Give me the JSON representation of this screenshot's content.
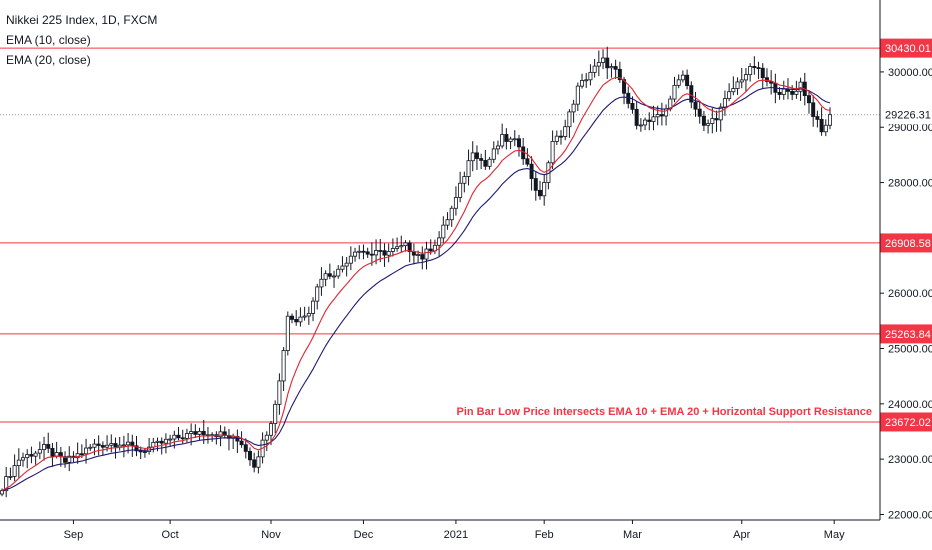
{
  "chart_data": {
    "type": "candlestick",
    "title": "Nikkei 225 Index, 1D, FXCM",
    "indicators": [
      "EMA (10, close)",
      "EMA (20, close)"
    ],
    "ylim": [
      21900,
      31300
    ],
    "y_ticks": [
      "22000.00",
      "23000.00",
      "24000.00",
      "25000.00",
      "26000.00",
      "27000.00",
      "28000.00",
      "29000.00",
      "30000.00"
    ],
    "x_ticks": [
      "Sep",
      "Oct",
      "Nov",
      "Dec",
      "2021",
      "Feb",
      "Mar",
      "Apr",
      "May"
    ],
    "grid": false,
    "horizontal_levels": [
      {
        "label": "30430.01",
        "value": 30430.01,
        "style": "solid"
      },
      {
        "label": "26908.58",
        "value": 26908.58,
        "style": "solid"
      },
      {
        "label": "25263.84",
        "value": 25263.84,
        "style": "solid"
      },
      {
        "label": "23672.02",
        "value": 23672.02,
        "style": "solid"
      }
    ],
    "current_price": {
      "label": "29226.31",
      "value": 29226.31,
      "style": "dotted"
    },
    "annotation": {
      "text": "Pin Bar Low Price Intersects EMA 10 + EMA 20 + Horizontal Support Resistance",
      "value": 23800
    },
    "anchors": [
      [
        0,
        22500
      ],
      [
        4,
        23000
      ],
      [
        10,
        23200
      ],
      [
        15,
        22950
      ],
      [
        22,
        23250
      ],
      [
        28,
        23300
      ],
      [
        33,
        23150
      ],
      [
        40,
        23350
      ],
      [
        47,
        23500
      ],
      [
        52,
        23450
      ],
      [
        57,
        23300
      ],
      [
        60,
        22900
      ],
      [
        64,
        23700
      ],
      [
        66,
        24400
      ],
      [
        68,
        25600
      ],
      [
        70,
        25500
      ],
      [
        73,
        25700
      ],
      [
        76,
        26300
      ],
      [
        80,
        26400
      ],
      [
        84,
        26800
      ],
      [
        88,
        26700
      ],
      [
        92,
        26750
      ],
      [
        96,
        26850
      ],
      [
        100,
        26650
      ],
      [
        104,
        27000
      ],
      [
        108,
        27700
      ],
      [
        112,
        28600
      ],
      [
        115,
        28300
      ],
      [
        119,
        28800
      ],
      [
        123,
        28700
      ],
      [
        126,
        28100
      ],
      [
        128,
        27700
      ],
      [
        131,
        28700
      ],
      [
        134,
        29000
      ],
      [
        137,
        29700
      ],
      [
        140,
        30000
      ],
      [
        143,
        30200
      ],
      [
        146,
        30000
      ],
      [
        148,
        29600
      ],
      [
        151,
        29100
      ],
      [
        154,
        29100
      ],
      [
        157,
        29200
      ],
      [
        160,
        29700
      ],
      [
        162,
        30000
      ],
      [
        164,
        29500
      ],
      [
        167,
        29000
      ],
      [
        170,
        29200
      ],
      [
        173,
        29600
      ],
      [
        176,
        29900
      ],
      [
        179,
        30100
      ],
      [
        182,
        29800
      ],
      [
        185,
        29650
      ],
      [
        188,
        29600
      ],
      [
        190,
        29800
      ],
      [
        193,
        29250
      ],
      [
        195,
        28900
      ],
      [
        197,
        29226
      ]
    ]
  }
}
